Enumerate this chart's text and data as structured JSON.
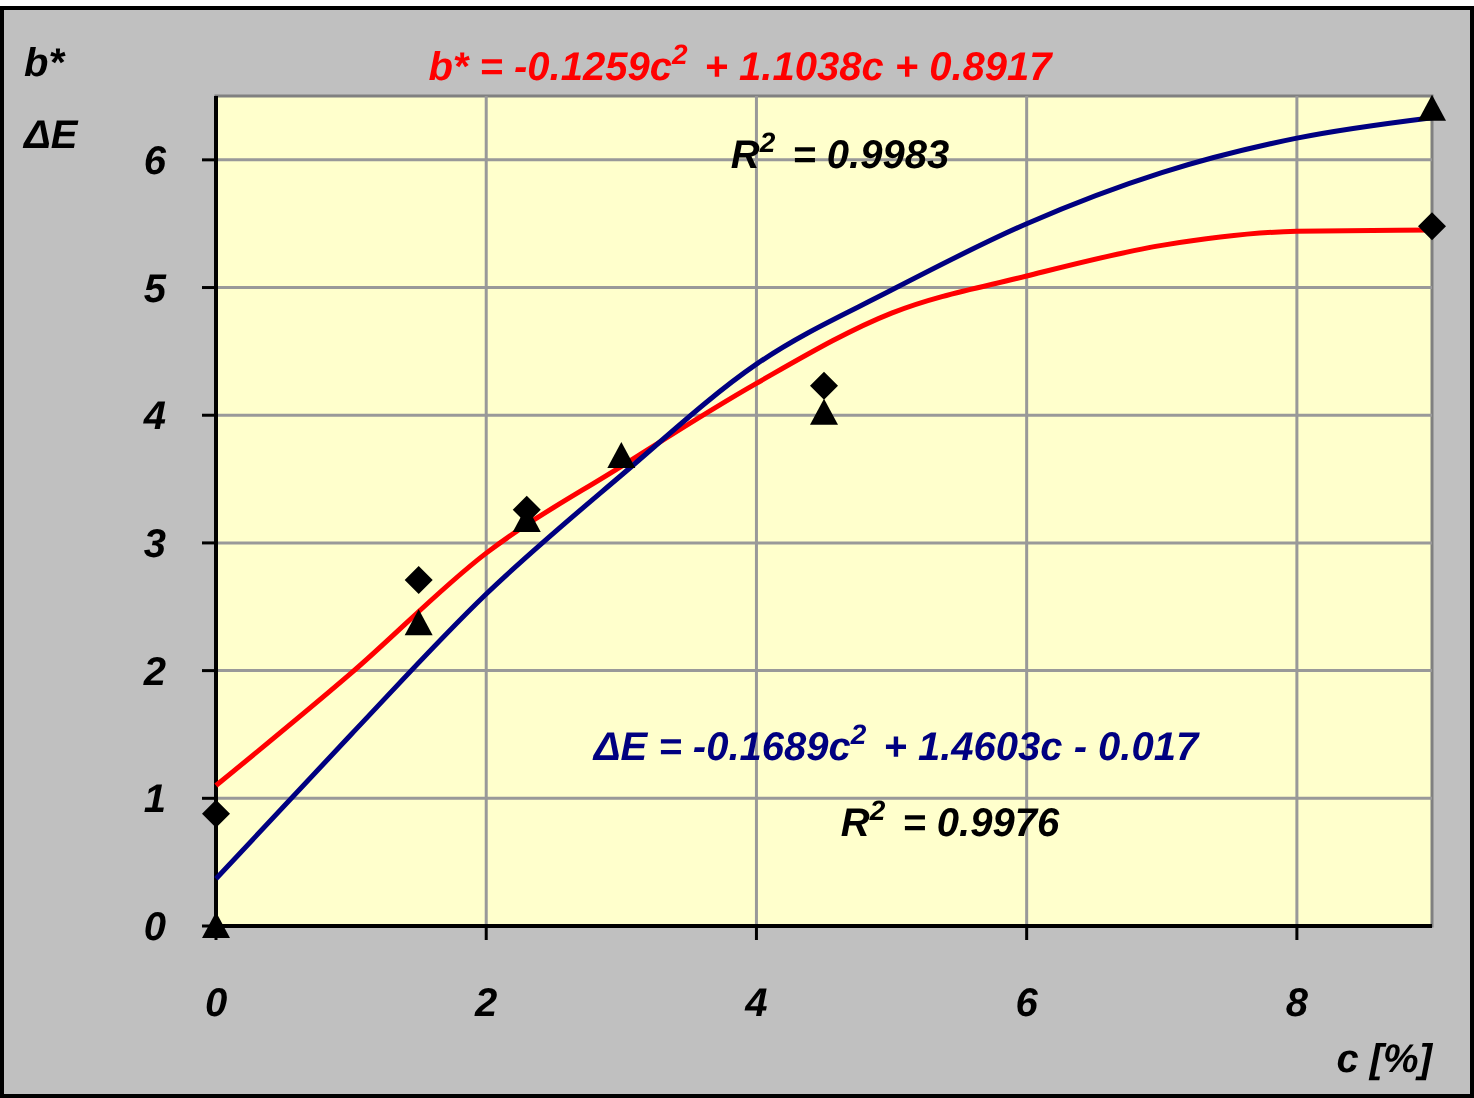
{
  "chart_data": {
    "type": "scatter",
    "xlabel": "c [%]",
    "ylabel": "b*\nΔE",
    "annotations": [
      "b* = -0.1259c$^{2}$ + 1.1038c + 0.8917",
      "R$^{2}$ = 0.9983",
      "ΔE = -0.1689c$^{2}$ + 1.4603c - 0.017",
      "R$^{2}$ = 0.9976"
    ],
    "xlim": [
      0,
      9
    ],
    "xticks": [
      0,
      2,
      4,
      6,
      8
    ],
    "ylim": [
      0,
      6.5
    ],
    "yticks": [
      0,
      1,
      2,
      3,
      4,
      5,
      6
    ],
    "grid": true,
    "series": [
      {
        "type": "line",
        "color": "#ff0000",
        "marker": "none",
        "x": [
          0,
          1,
          2,
          3,
          4,
          5,
          6,
          7,
          8,
          9
        ],
        "values": [
          1.1,
          1.98,
          2.92,
          3.6,
          4.25,
          4.8,
          5.09,
          5.33,
          5.44,
          5.45
        ]
      },
      {
        "type": "line",
        "color": "#000080",
        "marker": "none",
        "x": [
          0,
          1,
          2,
          3,
          4,
          5,
          6,
          7,
          8,
          9
        ],
        "values": [
          0.37,
          1.5,
          2.6,
          3.53,
          4.4,
          4.98,
          5.5,
          5.9,
          6.17,
          6.33
        ]
      },
      {
        "type": "scatter",
        "color": "#000000",
        "marker": "diamond",
        "x": [
          0,
          1.5,
          2.3,
          4.5,
          9
        ],
        "values": [
          0.88,
          2.71,
          3.26,
          4.23,
          5.48
        ]
      },
      {
        "type": "scatter",
        "color": "#000000",
        "marker": "triangle",
        "x": [
          0,
          1.5,
          2.3,
          3,
          4.5,
          9
        ],
        "values": [
          0,
          2.37,
          3.18,
          3.68,
          4.02,
          6.4
        ]
      }
    ]
  }
}
